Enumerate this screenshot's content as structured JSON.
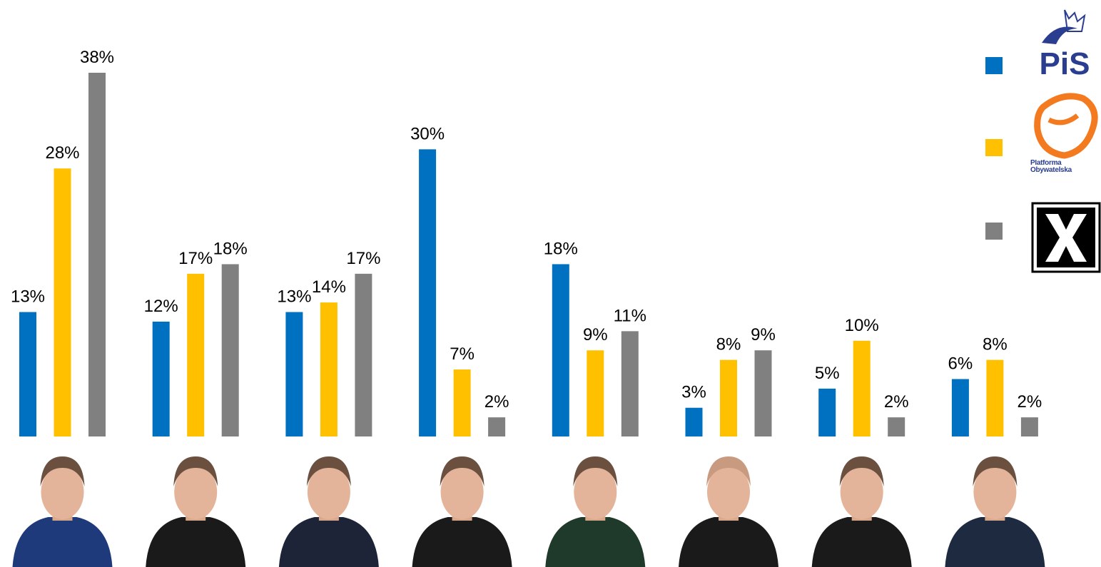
{
  "chart_data": {
    "type": "bar",
    "categories": [
      null,
      null,
      null,
      null,
      null,
      null,
      null,
      null
    ],
    "series": [
      {
        "name": "PiS",
        "color": "#0070c0",
        "values": [
          13,
          12,
          13,
          30,
          18,
          3,
          5,
          6
        ],
        "value_labels": [
          "13%",
          "12%",
          "13%",
          "30%",
          "18%",
          "3%",
          "5%",
          "6%"
        ]
      },
      {
        "name": "Platforma Obywatelska",
        "color": "#ffc000",
        "values": [
          28,
          17,
          14,
          7,
          9,
          8,
          10,
          8
        ],
        "value_labels": [
          "28%",
          "17%",
          "14%",
          "7%",
          "9%",
          "8%",
          "10%",
          "8%"
        ]
      },
      {
        "name": null,
        "color": "#808080",
        "values": [
          38,
          18,
          17,
          2,
          11,
          9,
          2,
          2
        ],
        "value_labels": [
          "38%",
          "18%",
          "17%",
          "2%",
          "11%",
          "9%",
          "2%",
          "2%"
        ]
      }
    ]
  }
}
